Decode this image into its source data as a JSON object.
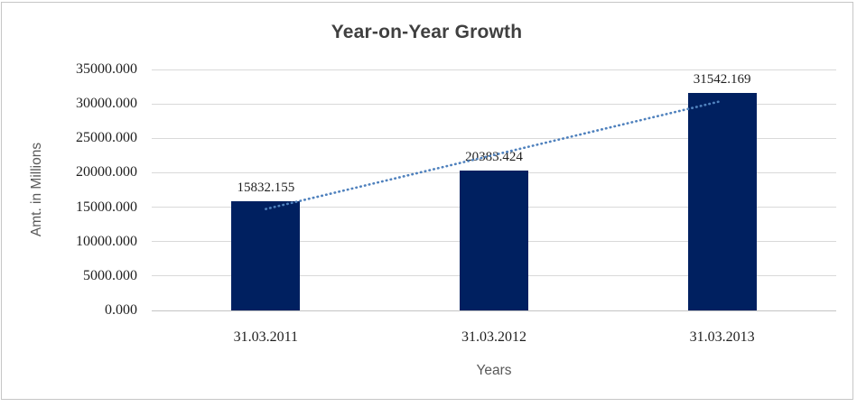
{
  "chart_data": {
    "type": "bar",
    "title": "Year-on-Year Growth",
    "xlabel": "Years",
    "ylabel": "Amt. in Millions",
    "categories": [
      "31.03.2011",
      "31.03.2012",
      "31.03.2013"
    ],
    "values": [
      15832.155,
      20383.424,
      31542.169
    ],
    "data_labels": [
      "15832.155",
      "20383.424",
      "31542.169"
    ],
    "ylim": [
      0,
      35000
    ],
    "ytick_step": 5000,
    "ytick_decimals": 3,
    "grid": true,
    "legend": "none",
    "trendline": {
      "type": "linear",
      "style": "dotted"
    }
  },
  "colors": {
    "bar": "#002060",
    "trendline": "#4f81bd",
    "gridline": "#d9d9d9",
    "baseline": "#c3c3c3",
    "title": "#404040",
    "axis_title": "#595959",
    "tick_label": "#1f1f1f",
    "data_label": "#1f1f1f",
    "frame_border": "#c6c6c6",
    "background": "#ffffff"
  }
}
